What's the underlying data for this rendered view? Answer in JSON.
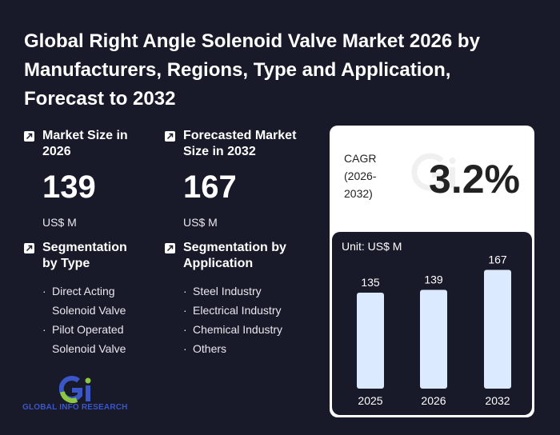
{
  "title": "Global Right Angle Solenoid Valve Market 2026 by Manufacturers, Regions, Type and Application, Forecast to 2032",
  "market_size": {
    "label": "Market Size in 2026",
    "value": "139",
    "unit": "US$ M"
  },
  "forecast": {
    "label": "Forecasted Market Size in 2032",
    "value": "167",
    "unit": "US$ M"
  },
  "seg_type": {
    "label": "Segmentation by Type",
    "items": [
      "Direct Acting Solenoid Valve",
      "Pilot Operated Solenoid Valve"
    ]
  },
  "seg_app": {
    "label": "Segmentation by Application",
    "items": [
      "Steel Industry",
      "Electrical Industry",
      "Chemical Industry",
      "Others"
    ]
  },
  "cagr": {
    "label": "CAGR (2026-2032)",
    "value": "3.2%"
  },
  "logo": {
    "text": "GLOBAL INFO RESEARCH"
  },
  "colors": {
    "background": "#181a2a",
    "bar": "#dbeafe",
    "accent_green": "#8dc63f",
    "accent_blue": "#3a56c8"
  },
  "chart_data": {
    "type": "bar",
    "unit_label": "Unit: US$ M",
    "categories": [
      "2025",
      "2026",
      "2032"
    ],
    "values": [
      135,
      139,
      167
    ],
    "ylim": [
      0,
      180
    ],
    "grid": false
  }
}
